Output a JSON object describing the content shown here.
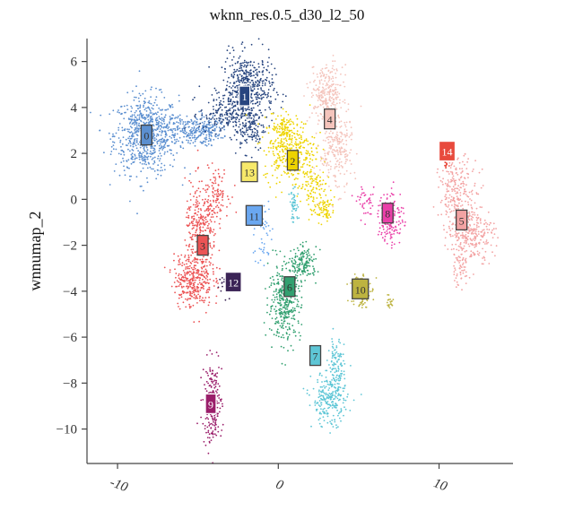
{
  "chart_data": {
    "type": "scatter",
    "title": "wknn_res.0.5_d30_l2_50",
    "xlabel": "",
    "ylabel": "wnnumap_2",
    "xlim": [
      -11.9,
      14.6
    ],
    "ylim": [
      -11.5,
      7.0
    ],
    "xticks": [
      -10,
      0,
      10
    ],
    "xtick_labels": [
      "-10",
      "0",
      "10"
    ],
    "yticks": [
      6,
      4,
      2,
      0,
      -2,
      -4,
      -6,
      -8,
      -10
    ],
    "ytick_labels": [
      "6",
      "4",
      "2",
      "0",
      "−2",
      "−4",
      "−6",
      "−8",
      "−10"
    ],
    "grid": false,
    "legend": "none",
    "clusters": [
      {
        "id": "0",
        "color": "#5b8fd0",
        "label_at": [
          -8.2,
          2.8
        ],
        "blobs": [
          [
            -8.2,
            2.8,
            1.0,
            0.85,
            700
          ],
          [
            -5.5,
            3.0,
            0.9,
            0.35,
            200
          ],
          [
            -4.4,
            3.0,
            0.5,
            0.25,
            90
          ]
        ]
      },
      {
        "id": "1",
        "color": "#27457f",
        "label_at": [
          -2.1,
          4.5
        ],
        "blobs": [
          [
            -1.9,
            4.8,
            0.8,
            0.75,
            500
          ],
          [
            -3.5,
            3.7,
            0.7,
            0.4,
            150
          ],
          [
            -1.8,
            3.1,
            0.5,
            0.5,
            120
          ]
        ]
      },
      {
        "id": "2",
        "color": "#eed400",
        "label_at": [
          0.9,
          1.7
        ],
        "blobs": [
          [
            0.7,
            2.2,
            0.8,
            0.7,
            350
          ],
          [
            2.0,
            0.6,
            0.45,
            0.5,
            100
          ],
          [
            2.8,
            -0.4,
            0.35,
            0.3,
            80
          ],
          [
            0.3,
            3.1,
            0.3,
            0.3,
            60
          ]
        ]
      },
      {
        "id": "3",
        "color": "#ec5455",
        "label_at": [
          -4.7,
          -2.0
        ],
        "blobs": [
          [
            -5.3,
            -3.5,
            0.6,
            0.6,
            300
          ],
          [
            -4.8,
            -1.5,
            0.5,
            1.1,
            300
          ],
          [
            -3.9,
            0.3,
            0.4,
            0.5,
            100
          ]
        ]
      },
      {
        "id": "4",
        "color": "#f4c4bc",
        "label_at": [
          3.2,
          3.5
        ],
        "blobs": [
          [
            3.0,
            4.6,
            0.5,
            0.6,
            250
          ],
          [
            3.6,
            2.2,
            0.5,
            0.9,
            250
          ]
        ]
      },
      {
        "id": "5",
        "color": "#f3a3a3",
        "label_at": [
          11.4,
          -0.9
        ],
        "blobs": [
          [
            11.2,
            0.2,
            0.6,
            0.8,
            250
          ],
          [
            12.0,
            -1.5,
            0.7,
            0.6,
            250
          ],
          [
            11.3,
            -3.0,
            0.3,
            0.4,
            60
          ]
        ]
      },
      {
        "id": "6",
        "color": "#32a070",
        "label_at": [
          0.7,
          -3.8
        ],
        "blobs": [
          [
            0.4,
            -4.5,
            0.5,
            0.8,
            350
          ],
          [
            1.6,
            -2.8,
            0.4,
            0.35,
            150
          ]
        ]
      },
      {
        "id": "7",
        "color": "#5ec6d6",
        "label_at": [
          2.3,
          -6.8
        ],
        "blobs": [
          [
            3.2,
            -8.7,
            0.55,
            0.6,
            250
          ],
          [
            3.6,
            -7.3,
            0.25,
            0.7,
            100
          ],
          [
            1.0,
            -0.3,
            0.15,
            0.35,
            50
          ]
        ]
      },
      {
        "id": "8",
        "color": "#ea3fa8",
        "label_at": [
          6.8,
          -0.6
        ],
        "blobs": [
          [
            7.0,
            -0.8,
            0.4,
            0.6,
            150
          ],
          [
            5.5,
            -0.2,
            0.3,
            0.3,
            40
          ]
        ]
      },
      {
        "id": "9",
        "color": "#9a1e6a",
        "label_at": [
          -4.2,
          -8.9
        ],
        "blobs": [
          [
            -4.1,
            -8.9,
            0.3,
            0.9,
            200
          ]
        ]
      },
      {
        "id": "10",
        "color": "#bdb340",
        "label_at": [
          5.1,
          -3.9
        ],
        "blobs": [
          [
            5.1,
            -3.9,
            0.3,
            0.4,
            120
          ],
          [
            6.9,
            -4.5,
            0.15,
            0.15,
            20
          ]
        ]
      },
      {
        "id": "11",
        "color": "#6aa7f0",
        "label_at": [
          -1.5,
          -0.7
        ],
        "blobs": [
          [
            -1.0,
            -1.5,
            0.3,
            0.8,
            50
          ]
        ]
      },
      {
        "id": "12",
        "color": "#3b2456",
        "label_at": [
          -2.8,
          -3.6
        ],
        "blobs": [
          [
            -3.2,
            -3.7,
            0.25,
            0.25,
            20
          ]
        ]
      },
      {
        "id": "13",
        "color": "#f7e96a",
        "label_at": [
          -1.8,
          1.2
        ],
        "blobs": [
          [
            -1.8,
            1.2,
            0.2,
            0.2,
            8
          ]
        ]
      },
      {
        "id": "14",
        "color": "#e84a3d",
        "label_at": [
          10.5,
          2.1
        ],
        "blobs": [
          [
            10.5,
            1.5,
            0.1,
            0.1,
            10
          ]
        ]
      }
    ]
  }
}
